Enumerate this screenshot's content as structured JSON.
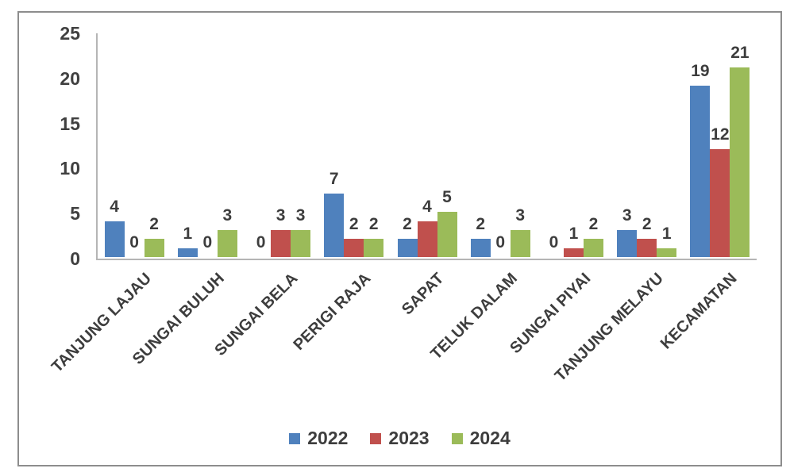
{
  "chart_data": {
    "type": "bar",
    "title": "",
    "categories": [
      "TANJUNG LAJAU",
      "SUNGAI BULUH",
      "SUNGAI BELA",
      "PERIGI RAJA",
      "SAPAT",
      "TELUK DALAM",
      "SUNGAI PIYAI",
      "TANJUNG MELAYU",
      "KECAMATAN"
    ],
    "series": [
      {
        "name": "2022",
        "color": "#4f81bd",
        "values": [
          4,
          1,
          0,
          7,
          2,
          2,
          0,
          3,
          19
        ]
      },
      {
        "name": "2023",
        "color": "#c0504d",
        "values": [
          0,
          0,
          3,
          2,
          4,
          0,
          1,
          2,
          12
        ]
      },
      {
        "name": "2024",
        "color": "#9bbb59",
        "values": [
          2,
          3,
          3,
          2,
          5,
          3,
          2,
          1,
          21
        ]
      }
    ],
    "ylim": [
      0,
      25
    ],
    "yticks": [
      0,
      5,
      10,
      15,
      20,
      25
    ],
    "grid": false,
    "data_labels": true,
    "legend_position": "bottom",
    "xlabel": "",
    "ylabel": "",
    "axis_color": "#b5b5b5",
    "text_color": "#404040",
    "frame_color": "#8d8d8d"
  }
}
